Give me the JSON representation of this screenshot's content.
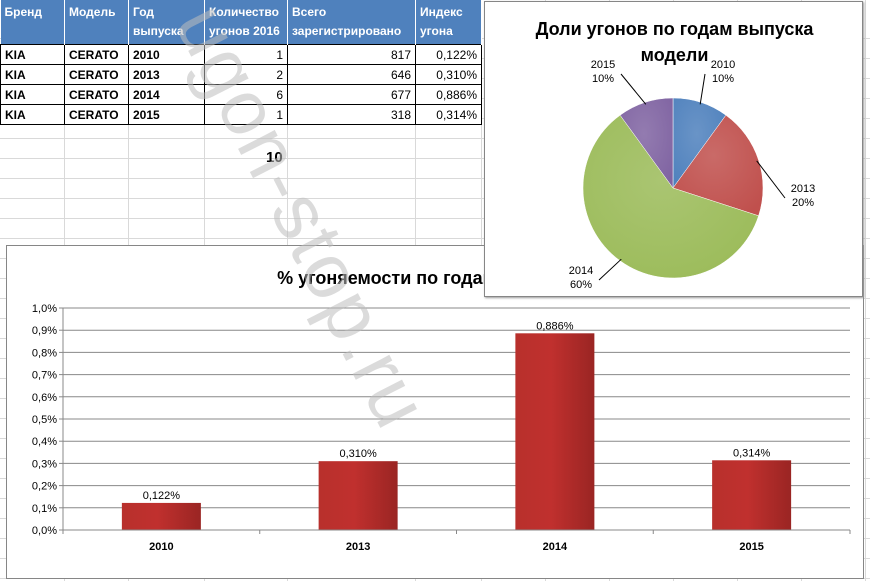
{
  "table": {
    "headers": [
      [
        "Бренд"
      ],
      [
        "Модель"
      ],
      [
        "Год",
        "выпуска"
      ],
      [
        "Количество",
        "угонов 2016"
      ],
      [
        "Всего",
        "зарегистрировано"
      ],
      [
        "Индекс",
        "угона"
      ]
    ],
    "rows": [
      [
        "KIA",
        "CERATO",
        "2010",
        "1",
        "817",
        "0,122%"
      ],
      [
        "KIA",
        "CERATO",
        "2013",
        "2",
        "646",
        "0,310%"
      ],
      [
        "KIA",
        "CERATO",
        "2014",
        "6",
        "677",
        "0,886%"
      ],
      [
        "KIA",
        "CERATO",
        "2015",
        "1",
        "318",
        "0,314%"
      ]
    ],
    "total": "10"
  },
  "watermark": "ugon-stop.ru",
  "colors": {
    "header_bg": "#4f81bd",
    "bar_fill": "#c0302e",
    "pie_2010": "#4f81bd",
    "pie_2013": "#c0504d",
    "pie_2014": "#9bbb59",
    "pie_2015": "#8064a2"
  },
  "chart_data": [
    {
      "type": "bar",
      "title": "% угоняемости  по годам  выпуска",
      "categories": [
        "2010",
        "2013",
        "2014",
        "2015"
      ],
      "values": [
        0.122,
        0.31,
        0.886,
        0.314
      ],
      "data_labels": [
        "0,122%",
        "0,310%",
        "0,886%",
        "0,314%"
      ],
      "ylim": [
        0,
        1.0
      ],
      "yticks": [
        "0,0%",
        "0,1%",
        "0,2%",
        "0,3%",
        "0,4%",
        "0,5%",
        "0,6%",
        "0,7%",
        "0,8%",
        "0,9%",
        "1,0%"
      ],
      "grid": true,
      "legend": "none"
    },
    {
      "type": "pie",
      "title": "Доли угонов  по годам  выпуска модели",
      "title_lines": [
        "Доли угонов  по годам  выпуска",
        "модели"
      ],
      "categories": [
        "2010",
        "2013",
        "2014",
        "2015"
      ],
      "values": [
        10,
        20,
        60,
        10
      ],
      "labels": [
        [
          "2010",
          "10%"
        ],
        [
          "2013",
          "20%"
        ],
        [
          "2014",
          "60%"
        ],
        [
          "2015",
          "10%"
        ]
      ],
      "legend": "none"
    }
  ]
}
